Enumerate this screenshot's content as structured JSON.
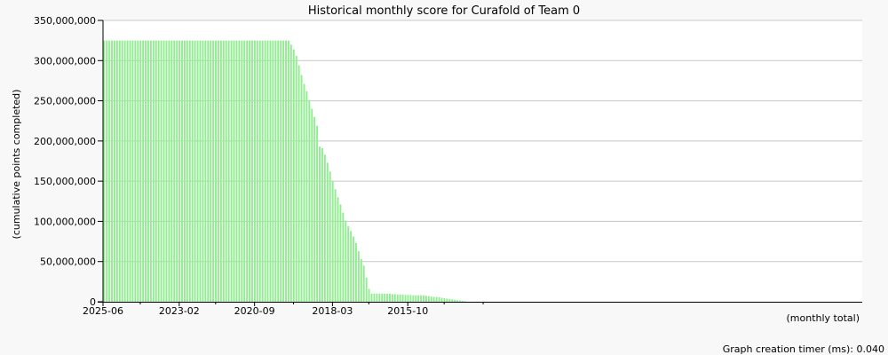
{
  "chart_data": {
    "type": "bar",
    "title": "Historical monthly score for Curafold of Team 0",
    "ylabel": "(cumulative points completed)",
    "xlabel": "(monthly total)",
    "footer": "Graph creation timer (ms): 0.040",
    "ylim": [
      0,
      350000000
    ],
    "y_ticks": [
      "0",
      "50,000,000",
      "100,000,000",
      "150,000,000",
      "200,000,000",
      "250,000,000",
      "300,000,000",
      "350,000,000"
    ],
    "x_tick_labels": [
      {
        "label": "2025-06",
        "index": 0
      },
      {
        "label": "2023-02",
        "index": 29
      },
      {
        "label": "2020-09",
        "index": 58
      },
      {
        "label": "2018-03",
        "index": 88
      },
      {
        "label": "2015-10",
        "index": 117
      }
    ],
    "x_minor_tick_indices": [
      14,
      43,
      73,
      102,
      131,
      146
    ],
    "grid": true,
    "bar_color": "#90ee90",
    "values": [
      325000000,
      325000000,
      325000000,
      325000000,
      325000000,
      325000000,
      325000000,
      325000000,
      325000000,
      325000000,
      325000000,
      325000000,
      325000000,
      325000000,
      325000000,
      325000000,
      325000000,
      325000000,
      325000000,
      325000000,
      325000000,
      325000000,
      325000000,
      325000000,
      325000000,
      325000000,
      325000000,
      325000000,
      325000000,
      325000000,
      325000000,
      325000000,
      325000000,
      325000000,
      325000000,
      325000000,
      325000000,
      325000000,
      325000000,
      325000000,
      325000000,
      325000000,
      325000000,
      325000000,
      325000000,
      325000000,
      325000000,
      325000000,
      325000000,
      325000000,
      325000000,
      325000000,
      325000000,
      325000000,
      325000000,
      325000000,
      325000000,
      325000000,
      325000000,
      325000000,
      325000000,
      325000000,
      325000000,
      325000000,
      325000000,
      325000000,
      325000000,
      325000000,
      325000000,
      325000000,
      325000000,
      325000000,
      320000000,
      314000000,
      306000000,
      294000000,
      282000000,
      271000000,
      262000000,
      250000000,
      240000000,
      230000000,
      219000000,
      193000000,
      191000000,
      183000000,
      173000000,
      162000000,
      150000000,
      140000000,
      130000000,
      121000000,
      111000000,
      101000000,
      94000000,
      88000000,
      81000000,
      73000000,
      63000000,
      53000000,
      45000000,
      30000000,
      16000000,
      10000000,
      10000000,
      10000000,
      10000000,
      10000000,
      10000000,
      10000000,
      10000000,
      9500000,
      9500000,
      9000000,
      9000000,
      9000000,
      8500000,
      8500000,
      8500000,
      8000000,
      8000000,
      8000000,
      8000000,
      8000000,
      7500000,
      7000000,
      6500000,
      6000000,
      6000000,
      5500000,
      5000000,
      4500000,
      4000000,
      3500000,
      3000000,
      2500000,
      2000000,
      1500000,
      1000000,
      500000,
      0,
      0,
      0,
      0,
      0,
      0,
      0
    ]
  }
}
